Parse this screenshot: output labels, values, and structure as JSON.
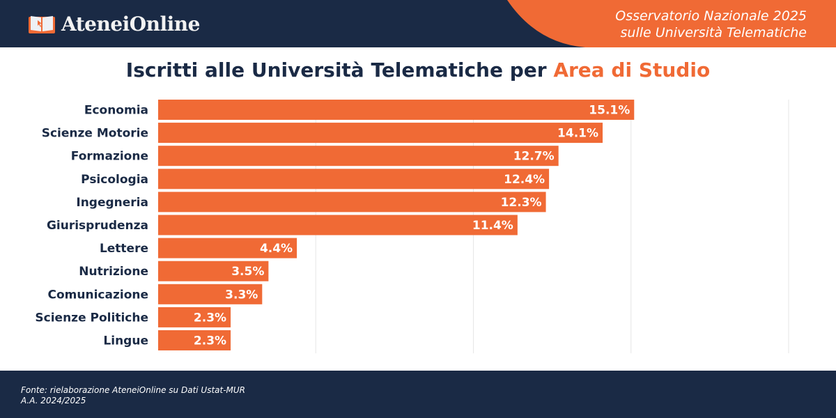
{
  "header": {
    "logo_text": "AteneiOnline",
    "subtitle_line1": "Osservatorio Nazionale 2025",
    "subtitle_line2": "sulle Università Telematiche",
    "navy": "#1a2a45",
    "accent": "#f06a35"
  },
  "title": {
    "main": "Iscritti alle Università Telematiche per ",
    "highlight": "Area di Studio"
  },
  "chart_data": {
    "type": "bar",
    "orientation": "horizontal",
    "categories": [
      "Economia",
      "Scienze Motorie",
      "Formazione",
      "Psicologia",
      "Ingegneria",
      "Giurisprudenza",
      "Lettere",
      "Nutrizione",
      "Comunicazione",
      "Scienze Politiche",
      "Lingue"
    ],
    "values": [
      15.1,
      14.1,
      12.7,
      12.4,
      12.3,
      11.4,
      4.4,
      3.5,
      3.3,
      2.3,
      2.3
    ],
    "data_labels": [
      "15.1%",
      "14.1%",
      "12.7%",
      "12.4%",
      "12.3%",
      "11.4%",
      "4.4%",
      "3.5%",
      "3.3%",
      "2.3%",
      "2.3%"
    ],
    "xlim": [
      0,
      20
    ],
    "grid": true,
    "gridlines": [
      5,
      10,
      15,
      20
    ],
    "bar_color": "#f06a35",
    "unit": "%"
  },
  "footer": {
    "source": "Fonte: rielaborazione AteneiOnline su Dati Ustat-MUR",
    "year": "A.A. 2024/2025"
  }
}
